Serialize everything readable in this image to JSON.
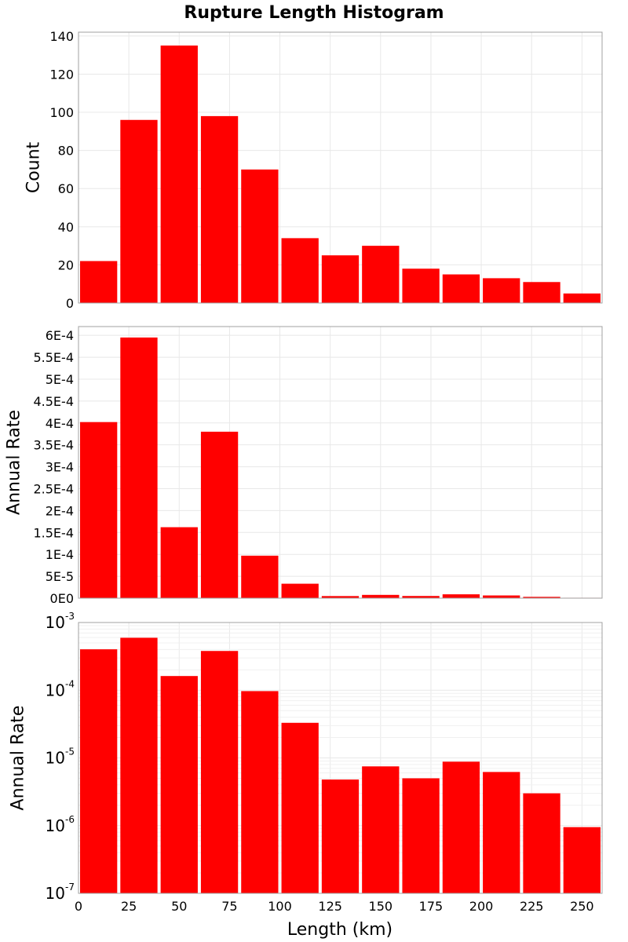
{
  "chart_data": {
    "title": "Rupture Length Histogram",
    "type": "bar",
    "bar_color": "#ff0000",
    "grid": true,
    "x": {
      "label": "Length (km)",
      "range": [
        0,
        260
      ],
      "ticks": [
        0,
        25,
        50,
        75,
        100,
        125,
        150,
        175,
        200,
        225,
        250
      ],
      "bin_width": 20,
      "bin_starts": [
        0,
        20,
        40,
        60,
        80,
        100,
        120,
        140,
        160,
        180,
        200,
        220,
        240
      ]
    },
    "panels": [
      {
        "ylabel": "Count",
        "scale": "linear",
        "ylim": [
          0,
          142
        ],
        "ticks": [
          0,
          20,
          40,
          60,
          80,
          100,
          120,
          140
        ],
        "tick_labels": [
          "0",
          "20",
          "40",
          "60",
          "80",
          "100",
          "120",
          "140"
        ],
        "values": [
          22,
          96,
          135,
          98,
          70,
          34,
          25,
          30,
          18,
          15,
          13,
          11,
          5
        ]
      },
      {
        "ylabel": "Annual Rate",
        "scale": "linear",
        "ylim": [
          0,
          0.00062
        ],
        "ticks": [
          0,
          5e-05,
          0.0001,
          0.00015,
          0.0002,
          0.00025,
          0.0003,
          0.00035,
          0.0004,
          0.00045,
          0.0005,
          0.00055,
          0.0006
        ],
        "tick_labels": [
          "0E0",
          "5E-5",
          "1E-4",
          "1.5E-4",
          "2E-4",
          "2.5E-4",
          "3E-4",
          "3.5E-4",
          "4E-4",
          "4.5E-4",
          "5E-4",
          "5.5E-4",
          "6E-4"
        ],
        "values": [
          0.000402,
          0.000595,
          0.000162,
          0.00038,
          9.7e-05,
          3.3e-05,
          4.8e-06,
          7.5e-06,
          5e-06,
          8.8e-06,
          6.2e-06,
          3e-06,
          9.5e-07
        ]
      },
      {
        "ylabel": "Annual Rate",
        "scale": "log",
        "ylim": [
          1e-07,
          0.001
        ],
        "ticks": [
          1e-07,
          1e-06,
          1e-05,
          0.0001,
          0.001
        ],
        "tick_labels": [
          {
            "base": "10",
            "exp": "-7"
          },
          {
            "base": "10",
            "exp": "-6"
          },
          {
            "base": "10",
            "exp": "-5"
          },
          {
            "base": "10",
            "exp": "-4"
          },
          {
            "base": "10",
            "exp": "-3"
          }
        ],
        "values": [
          0.000402,
          0.000595,
          0.000162,
          0.00038,
          9.7e-05,
          3.3e-05,
          4.8e-06,
          7.5e-06,
          5e-06,
          8.8e-06,
          6.2e-06,
          3e-06,
          9.5e-07
        ]
      }
    ]
  }
}
